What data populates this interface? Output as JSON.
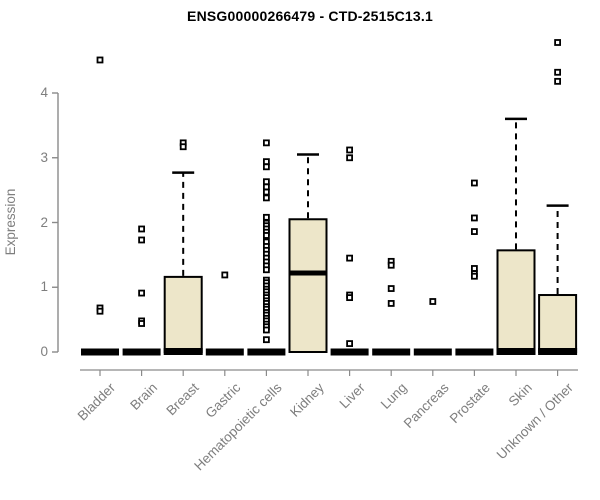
{
  "title": "ENSG00000266479 - CTD-2515C13.1",
  "chart_data": {
    "type": "boxplot",
    "title": "ENSG00000266479 - CTD-2515C13.1",
    "xlabel": "",
    "ylabel": "Expression",
    "ylim": [
      0,
      4.85
    ],
    "yticks": [
      0,
      1,
      2,
      3,
      4
    ],
    "grid": false,
    "legend": "none",
    "box_fill": "#ede6c9",
    "box_border": "#000000",
    "median_color": "#000000",
    "axis_color": "#8a8a8a",
    "text_color": "#7e7e7e",
    "title_color": "#000000",
    "categories": [
      "Bladder",
      "Brain",
      "Breast",
      "Gastric",
      "Hematopoietic cells",
      "Kidney",
      "Liver",
      "Lung",
      "Pancreas",
      "Prostate",
      "Skin",
      "Unknown / Other"
    ],
    "boxes": [
      {
        "label": "Bladder",
        "collapsed": true,
        "q1": 0,
        "median": 0,
        "q3": 0,
        "whisker_low": 0,
        "whisker_high": 0,
        "outliers": [
          4.51,
          0.68,
          0.63
        ]
      },
      {
        "label": "Brain",
        "collapsed": true,
        "q1": 0,
        "median": 0,
        "q3": 0,
        "whisker_low": 0,
        "whisker_high": 0,
        "outliers": [
          1.9,
          1.73,
          0.91,
          0.48,
          0.44
        ]
      },
      {
        "label": "Breast",
        "collapsed": false,
        "q1": 0,
        "median": 0.02,
        "q3": 1.16,
        "whisker_low": 0,
        "whisker_high": 2.77,
        "outliers": [
          3.23,
          3.17
        ]
      },
      {
        "label": "Gastric",
        "collapsed": true,
        "q1": 0,
        "median": 0,
        "q3": 0,
        "whisker_low": 0,
        "whisker_high": 0,
        "outliers": [
          1.19
        ]
      },
      {
        "label": "Hematopoietic cells",
        "collapsed": true,
        "q1": 0,
        "median": 0,
        "q3": 0,
        "whisker_low": 0,
        "whisker_high": 0,
        "outliers": [
          3.23,
          2.94,
          2.86,
          2.63,
          2.55,
          2.47,
          2.38,
          2.08,
          1.99,
          1.95,
          1.9,
          1.85,
          1.8,
          1.7,
          1.63,
          1.57,
          1.51,
          1.45,
          1.39,
          1.33,
          1.27,
          1.11,
          1.07,
          1.02,
          0.97,
          0.93,
          0.88,
          0.84,
          0.79,
          0.75,
          0.7,
          0.66,
          0.61,
          0.57,
          0.52,
          0.48,
          0.43,
          0.39,
          0.34,
          0.19
        ]
      },
      {
        "label": "Kidney",
        "collapsed": false,
        "q1": 0,
        "median": 1.22,
        "q3": 2.05,
        "whisker_low": 0,
        "whisker_high": 3.05,
        "outliers": []
      },
      {
        "label": "Liver",
        "collapsed": true,
        "q1": 0,
        "median": 0,
        "q3": 0,
        "whisker_low": 0,
        "whisker_high": 0,
        "outliers": [
          3.12,
          3.0,
          1.45,
          0.88,
          0.84,
          0.13
        ]
      },
      {
        "label": "Lung",
        "collapsed": true,
        "q1": 0,
        "median": 0,
        "q3": 0,
        "whisker_low": 0,
        "whisker_high": 0,
        "outliers": [
          1.4,
          1.34,
          0.98,
          0.75
        ]
      },
      {
        "label": "Pancreas",
        "collapsed": true,
        "q1": 0,
        "median": 0,
        "q3": 0,
        "whisker_low": 0,
        "whisker_high": 0,
        "outliers": [
          0.78
        ]
      },
      {
        "label": "Prostate",
        "collapsed": true,
        "q1": 0,
        "median": 0,
        "q3": 0,
        "whisker_low": 0,
        "whisker_high": 0,
        "outliers": [
          2.61,
          2.07,
          1.86,
          1.29,
          1.21,
          1.17
        ]
      },
      {
        "label": "Skin",
        "collapsed": false,
        "q1": 0,
        "median": 0.02,
        "q3": 1.57,
        "whisker_low": 0,
        "whisker_high": 3.6,
        "outliers": []
      },
      {
        "label": "Unknown / Other",
        "collapsed": false,
        "q1": 0,
        "median": 0.02,
        "q3": 0.88,
        "whisker_low": 0,
        "whisker_high": 2.26,
        "outliers": [
          4.78,
          4.32,
          4.18
        ]
      }
    ]
  }
}
